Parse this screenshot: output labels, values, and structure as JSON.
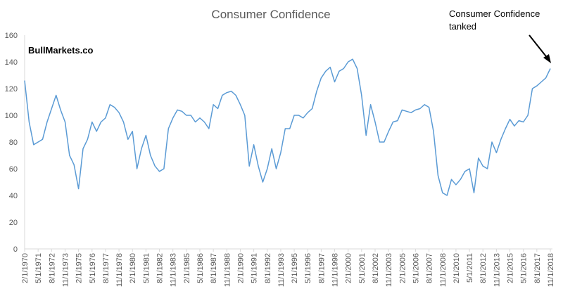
{
  "chart_data": {
    "type": "line",
    "title": "Consumer Confidence",
    "annotations": [
      {
        "text": "BullMarkets.co"
      },
      {
        "lines": [
          "Consumer Confidence",
          "tanked"
        ]
      }
    ],
    "color": "#5b9bd5",
    "categories": [
      "2/1/1970",
      null,
      null,
      "5/1/1971",
      null,
      null,
      "8/1/1972",
      null,
      null,
      "11/1/1973",
      null,
      null,
      "2/1/1975",
      null,
      null,
      "5/1/1976",
      null,
      null,
      "8/1/1977",
      null,
      null,
      "11/1/1978",
      null,
      null,
      "2/1/1980",
      null,
      null,
      "5/1/1981",
      null,
      null,
      "8/1/1982",
      null,
      null,
      "11/1/1983",
      null,
      null,
      "2/1/1985",
      null,
      null,
      "5/1/1986",
      null,
      null,
      "8/1/1987",
      null,
      null,
      "11/1/1988",
      null,
      null,
      "2/1/1990",
      null,
      null,
      "5/1/1991",
      null,
      null,
      "8/1/1992",
      null,
      null,
      "11/1/1993",
      null,
      null,
      "2/1/1995",
      null,
      null,
      "5/1/1996",
      null,
      null,
      "8/1/1997",
      null,
      null,
      "11/1/1998",
      null,
      null,
      "2/1/2000",
      null,
      null,
      "5/1/2001",
      null,
      null,
      "8/1/2002",
      null,
      null,
      "11/1/2003",
      null,
      null,
      "2/1/2005",
      null,
      null,
      "5/1/2006",
      null,
      null,
      "8/1/2007",
      null,
      null,
      "11/1/2008",
      null,
      null,
      "2/1/2010",
      null,
      null,
      "5/1/2011",
      null,
      null,
      "8/1/2012",
      null,
      null,
      "11/1/2013",
      null,
      null,
      "2/1/2015",
      null,
      null,
      "5/1/2016",
      null,
      null,
      "8/1/2017",
      null,
      null,
      "11/1/2018"
    ],
    "values": [
      126,
      95,
      78,
      80,
      82,
      95,
      105,
      115,
      104,
      95,
      70,
      63,
      45,
      75,
      82,
      95,
      88,
      95,
      98,
      108,
      106,
      102,
      95,
      82,
      88,
      60,
      75,
      85,
      70,
      62,
      58,
      60,
      90,
      98,
      104,
      103,
      100,
      100,
      95,
      98,
      95,
      90,
      108,
      105,
      115,
      117,
      118,
      115,
      108,
      100,
      62,
      78,
      62,
      50,
      60,
      75,
      60,
      72,
      90,
      90,
      100,
      100,
      98,
      102,
      105,
      118,
      128,
      133,
      136,
      125,
      133,
      135,
      140,
      142,
      135,
      115,
      85,
      108,
      95,
      80,
      80,
      88,
      95,
      96,
      104,
      103,
      102,
      104,
      105,
      108,
      106,
      88,
      55,
      42,
      40,
      52,
      48,
      52,
      58,
      60,
      42,
      68,
      62,
      60,
      80,
      72,
      82,
      90,
      97,
      92,
      96,
      95,
      100,
      120,
      122,
      125,
      128,
      135
    ],
    "ylim": [
      0,
      160
    ],
    "yticks": [
      0,
      20,
      40,
      60,
      80,
      100,
      120,
      140,
      160
    ],
    "grid": false
  }
}
